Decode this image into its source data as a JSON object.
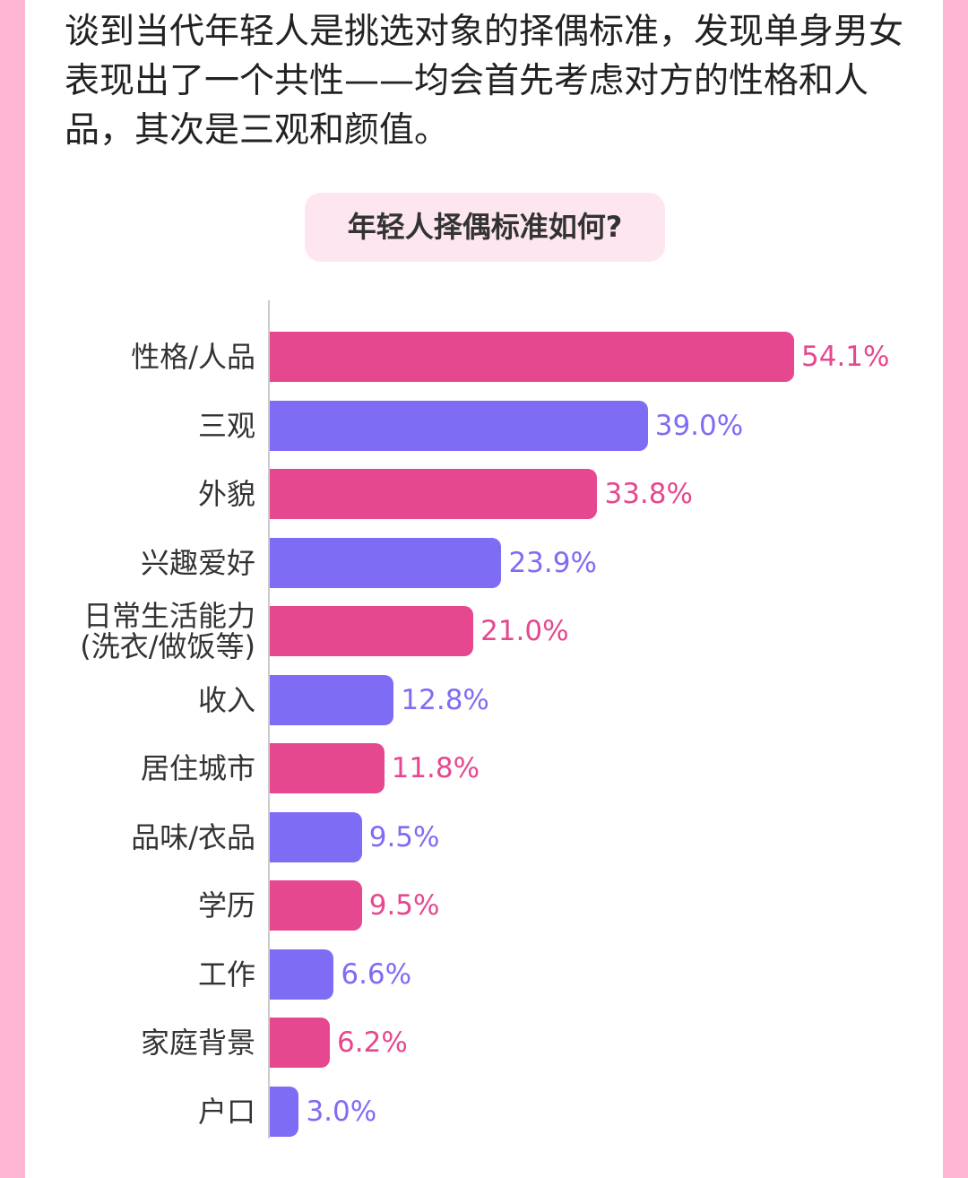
{
  "paragraph": "谈到当代年轻人是挑选对象的择偶标准，发现单身男女表现出了一个共性——均会首先考虑对方的性格和人品，其次是三观和颜值。",
  "chart_data": {
    "type": "bar",
    "orientation": "horizontal",
    "title": "年轻人择偶标准如何?",
    "categories": [
      "性格/人品",
      "三观",
      "外貌",
      "兴趣爱好",
      "日常生活能力\n(洗衣/做饭等)",
      "收入",
      "居住城市",
      "品味/衣品",
      "学历",
      "工作",
      "家庭背景",
      "户口"
    ],
    "values": [
      54.1,
      39.0,
      33.8,
      23.9,
      21.0,
      12.8,
      11.8,
      9.5,
      9.5,
      6.6,
      6.2,
      3.0
    ],
    "value_labels": [
      "54.1%",
      "39.0%",
      "33.8%",
      "23.9%",
      "21.0%",
      "12.8%",
      "11.8%",
      "9.5%",
      "9.5%",
      "6.6%",
      "6.2%",
      "3.0%"
    ],
    "colors": [
      "#e5488f",
      "#7f6cf5",
      "#e5488f",
      "#7f6cf5",
      "#e5488f",
      "#7f6cf5",
      "#e5488f",
      "#7f6cf5",
      "#e5488f",
      "#7f6cf5",
      "#e5488f",
      "#7f6cf5"
    ]
  }
}
